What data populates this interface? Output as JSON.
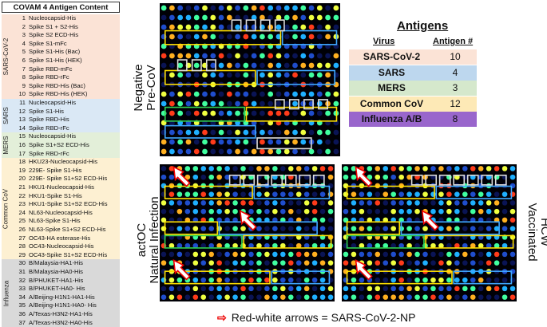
{
  "antigen_table": {
    "title": "COVAM 4 Antigen Content",
    "groups": [
      {
        "label": "SARS-CoV-2",
        "color": "#fbe3d6",
        "items": [
          {
            "n": "1",
            "name": "Nucleocapsid-His"
          },
          {
            "n": "2",
            "name": "Spike S1 + S2-His"
          },
          {
            "n": "3",
            "name": "Spike S2 ECD-His"
          },
          {
            "n": "4",
            "name": "Spike S1-mFc"
          },
          {
            "n": "5",
            "name": "Spike S1-His (Bac)"
          },
          {
            "n": "6",
            "name": "Spike S1-His (HEK)"
          },
          {
            "n": "7",
            "name": "Spike RBD-mFc"
          },
          {
            "n": "8",
            "name": "Spike RBD-rFc"
          },
          {
            "n": "9",
            "name": "Spike RBD-His (Bac)"
          },
          {
            "n": "10",
            "name": "Spike RBD-His (HEK)"
          }
        ]
      },
      {
        "label": "SARS",
        "color": "#dae8f5",
        "items": [
          {
            "n": "11",
            "name": "Nucleocapsid-His"
          },
          {
            "n": "12",
            "name": "Spike S1-His"
          },
          {
            "n": "13",
            "name": "Spike RBD-His"
          },
          {
            "n": "14",
            "name": "Spike RBD-rFc"
          }
        ]
      },
      {
        "label": "MERS",
        "color": "#e3efd9",
        "items": [
          {
            "n": "15",
            "name": "Nucleocapsid-His"
          },
          {
            "n": "16",
            "name": "Spike S1+S2 ECD-His"
          },
          {
            "n": "17",
            "name": "Spike RBD-rFc"
          }
        ]
      },
      {
        "label": "Common CoV",
        "color": "#fdf0d2",
        "items": [
          {
            "n": "18",
            "name": "HKU23-Nucleocapsid-His"
          },
          {
            "n": "19",
            "name": "229E- Spike S1-His"
          },
          {
            "n": "20",
            "name": "229E- Spike S1+S2 ECD-His"
          },
          {
            "n": "21",
            "name": "HKU1-Nucleocapsid-His"
          },
          {
            "n": "22",
            "name": "HKU1-Spike S1-His"
          },
          {
            "n": "23",
            "name": "HKU1-Spike S1+S2 ECD-His"
          },
          {
            "n": "24",
            "name": "NL63-Nucleocapsid-His"
          },
          {
            "n": "25",
            "name": "NL63-Spike S1-His"
          },
          {
            "n": "26",
            "name": "NL63-Spike S1+S2 ECD-His"
          },
          {
            "n": "27",
            "name": "OC43-HA esterase-His"
          },
          {
            "n": "28",
            "name": "OC43-Nucleocapsid-His"
          },
          {
            "n": "29",
            "name": "OC43-Spike S1+S2 ECD-His"
          }
        ]
      },
      {
        "label": "Influenza",
        "color": "#d9d9d9",
        "items": [
          {
            "n": "30",
            "name": "B/Malaysia-HA1-His"
          },
          {
            "n": "31",
            "name": "B/Malaysia-HA0-His"
          },
          {
            "n": "32",
            "name": "B/PHUKET-HA1-His"
          },
          {
            "n": "33",
            "name": "B/PHUKET-HA0- His"
          },
          {
            "n": "34",
            "name": "A/Beijing-H1N1-HA1-His"
          },
          {
            "n": "35",
            "name": "A/Beijing-H1N1-HA0- His"
          },
          {
            "n": "36",
            "name": "A/Texas-H3N2-HA1-His"
          },
          {
            "n": "37",
            "name": "A/Texas-H3N2-HA0-His"
          }
        ]
      }
    ]
  },
  "panels": {
    "negative": {
      "line1": "Negative",
      "line2": "Pre-CoV"
    },
    "actoc": {
      "line1": "actOC",
      "line2": "Natural Infection"
    },
    "hcw": {
      "line1": "HCW",
      "line2": "Vaccinated"
    }
  },
  "summary": {
    "title": "Antigens",
    "col_virus": "Virus",
    "col_count": "Antigen #",
    "rows": [
      {
        "virus": "SARS-CoV-2",
        "count": "10",
        "color": "#fbe3d6"
      },
      {
        "virus": "SARS",
        "count": "4",
        "color": "#bdd7ee"
      },
      {
        "virus": "MERS",
        "count": "3",
        "color": "#d5e8cc"
      },
      {
        "virus": "Common CoV",
        "count": "12",
        "color": "#fde9b6"
      },
      {
        "virus": "Influenza A/B",
        "count": "8",
        "color": "#9966cc"
      }
    ]
  },
  "legend": {
    "arrow": "⇨",
    "text": "Red-white arrows = SARS-CoV-2-NP"
  }
}
